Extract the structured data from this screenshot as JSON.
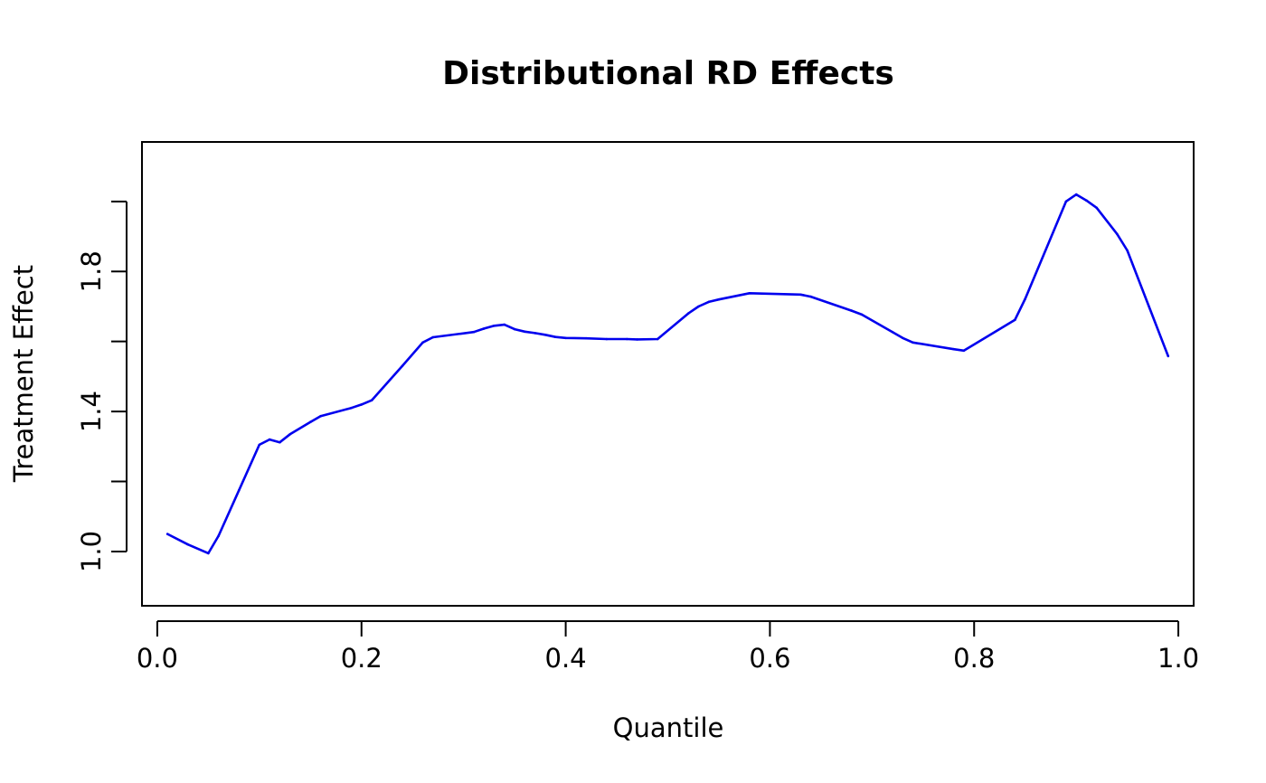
{
  "chart_data": {
    "type": "line",
    "title": "Distributional RD Effects",
    "xlabel": "Quantile",
    "ylabel": "Treatment Effect",
    "xlim": [
      -0.015,
      1.015
    ],
    "ylim": [
      0.845,
      2.17
    ],
    "xticks": [
      0.0,
      0.2,
      0.4,
      0.6,
      0.8,
      1.0
    ],
    "xtick_labels": [
      "0.0",
      "0.2",
      "0.4",
      "0.6",
      "0.8",
      "1.0"
    ],
    "yticks": [
      1.0,
      1.2,
      1.4,
      1.6,
      1.8,
      2.0
    ],
    "ytick_labels": [
      "1.0",
      "",
      "1.4",
      "",
      "1.8",
      ""
    ],
    "grid": false,
    "legend": "none",
    "series": [
      {
        "color": "#0000ee",
        "x": [
          0.01,
          0.03,
          0.05,
          0.06,
          0.08,
          0.1,
          0.11,
          0.12,
          0.13,
          0.15,
          0.16,
          0.19,
          0.2,
          0.21,
          0.24,
          0.26,
          0.27,
          0.31,
          0.32,
          0.33,
          0.34,
          0.35,
          0.36,
          0.37,
          0.38,
          0.39,
          0.4,
          0.42,
          0.44,
          0.46,
          0.47,
          0.49,
          0.52,
          0.53,
          0.54,
          0.55,
          0.58,
          0.63,
          0.64,
          0.68,
          0.69,
          0.72,
          0.73,
          0.74,
          0.78,
          0.79,
          0.84,
          0.85,
          0.89,
          0.9,
          0.91,
          0.92,
          0.94,
          0.95,
          0.99
        ],
        "y": [
          1.05,
          1.02,
          0.995,
          1.045,
          1.175,
          1.305,
          1.32,
          1.312,
          1.335,
          1.37,
          1.387,
          1.41,
          1.42,
          1.432,
          1.53,
          1.597,
          1.612,
          1.627,
          1.637,
          1.645,
          1.648,
          1.635,
          1.628,
          1.624,
          1.619,
          1.613,
          1.61,
          1.609,
          1.607,
          1.607,
          1.606,
          1.607,
          1.68,
          1.7,
          1.713,
          1.72,
          1.738,
          1.734,
          1.728,
          1.688,
          1.677,
          1.627,
          1.61,
          1.597,
          1.578,
          1.574,
          1.662,
          1.722,
          2.0,
          2.02,
          2.003,
          1.982,
          1.907,
          1.86,
          1.558
        ]
      }
    ]
  }
}
